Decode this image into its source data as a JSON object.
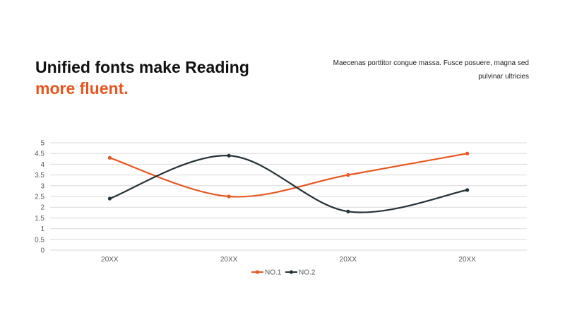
{
  "heading": {
    "line1": "Unified fonts make Reading",
    "line2": "more fluent."
  },
  "description": "Maecenas porttitor congue massa. Fusce posuere, magna sed pulvinar ultricies",
  "colors": {
    "accent": "#E8561F",
    "dark": "#253238",
    "grid": "#D9D9D9",
    "axis_text": "#595959"
  },
  "chart_data": {
    "type": "line",
    "categories": [
      "20XX",
      "20XX",
      "20XX",
      "20XX"
    ],
    "series": [
      {
        "name": "NO.1",
        "values": [
          4.3,
          2.5,
          3.5,
          4.5
        ],
        "color": "#E8561F"
      },
      {
        "name": "NO.2",
        "values": [
          2.4,
          4.4,
          1.8,
          2.8
        ],
        "color": "#253238"
      }
    ],
    "yticks": [
      "0",
      "0.5",
      "1",
      "1.5",
      "2",
      "2.5",
      "3",
      "3.5",
      "4",
      "4.5",
      "5"
    ],
    "ylim": [
      0,
      5
    ],
    "smooth": true,
    "grid": true,
    "legend_position": "bottom"
  }
}
